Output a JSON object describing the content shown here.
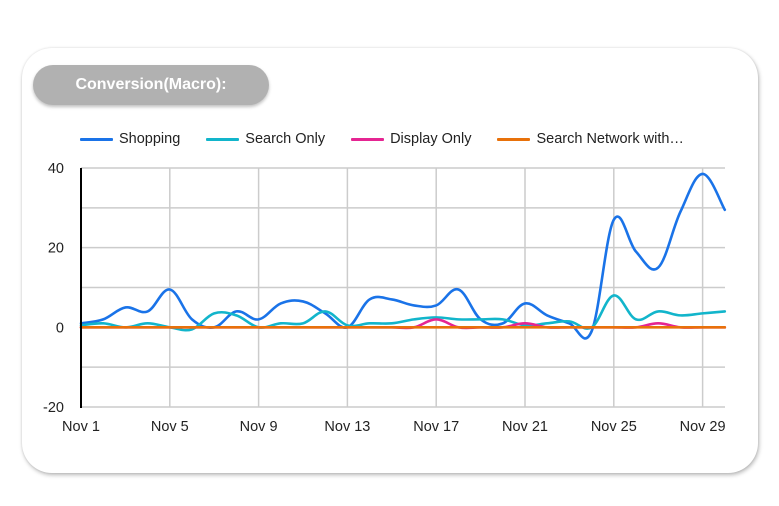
{
  "card": {
    "title": "Conversion(Macro):"
  },
  "legend": {
    "items": [
      {
        "label": "Shopping",
        "color": "#1a73e8"
      },
      {
        "label": "Search Only",
        "color": "#12b5cb"
      },
      {
        "label": "Display Only",
        "color": "#e52592"
      },
      {
        "label": "Search Network with…",
        "color": "#e8710a"
      }
    ]
  },
  "axes": {
    "y_ticks": [
      "40",
      "20",
      "0",
      "-20"
    ],
    "x_ticks": [
      "Nov 1",
      "Nov 5",
      "Nov 9",
      "Nov 13",
      "Nov 17",
      "Nov 21",
      "Nov 25",
      "Nov 29"
    ]
  },
  "chart_data": {
    "type": "line",
    "title": "Conversion(Macro):",
    "xlabel": "",
    "ylabel": "",
    "ylim": [
      -20,
      40
    ],
    "grid": true,
    "legend_position": "top",
    "x": [
      "Nov 1",
      "Nov 2",
      "Nov 3",
      "Nov 4",
      "Nov 5",
      "Nov 6",
      "Nov 7",
      "Nov 8",
      "Nov 9",
      "Nov 10",
      "Nov 11",
      "Nov 12",
      "Nov 13",
      "Nov 14",
      "Nov 15",
      "Nov 16",
      "Nov 17",
      "Nov 18",
      "Nov 19",
      "Nov 20",
      "Nov 21",
      "Nov 22",
      "Nov 23",
      "Nov 24",
      "Nov 25",
      "Nov 26",
      "Nov 27",
      "Nov 28",
      "Nov 29",
      "Nov 30"
    ],
    "x_tick_labels": [
      "Nov 1",
      "Nov 5",
      "Nov 9",
      "Nov 13",
      "Nov 17",
      "Nov 21",
      "Nov 25",
      "Nov 29"
    ],
    "y_tick_labels": [
      "40",
      "20",
      "0",
      "-20"
    ],
    "series": [
      {
        "name": "Shopping",
        "color": "#1a73e8",
        "values": [
          1,
          2,
          5,
          4,
          9.5,
          2,
          0,
          4,
          2,
          6,
          6.5,
          3.5,
          0,
          7,
          7,
          5.5,
          5.5,
          9.5,
          2,
          1,
          6,
          3,
          1,
          -1,
          27,
          19,
          15,
          29,
          38.5,
          29.5
        ]
      },
      {
        "name": "Search Only",
        "color": "#12b5cb",
        "values": [
          0.5,
          1,
          0,
          1,
          0,
          -0.5,
          3.5,
          3,
          0,
          1,
          1,
          4,
          0.5,
          1,
          1,
          2,
          2.5,
          2,
          2,
          2,
          0.5,
          1,
          1.5,
          0,
          8,
          2,
          4,
          3,
          3.5,
          4
        ]
      },
      {
        "name": "Display Only",
        "color": "#e52592",
        "values": [
          0,
          0,
          0,
          0,
          0,
          0,
          0,
          0,
          0,
          0,
          0,
          0,
          0,
          0,
          0,
          0,
          2,
          0,
          0,
          0,
          1,
          0,
          0,
          0,
          0,
          0,
          1,
          0,
          0,
          0
        ]
      },
      {
        "name": "Search Network with…",
        "color": "#e8710a",
        "values": [
          0,
          0,
          0,
          0,
          0,
          0,
          0,
          0,
          0,
          0,
          0,
          0,
          0,
          0,
          0,
          0,
          0,
          0,
          0,
          0,
          0,
          0,
          0,
          0,
          0,
          0,
          0,
          0,
          0,
          0
        ]
      }
    ]
  }
}
